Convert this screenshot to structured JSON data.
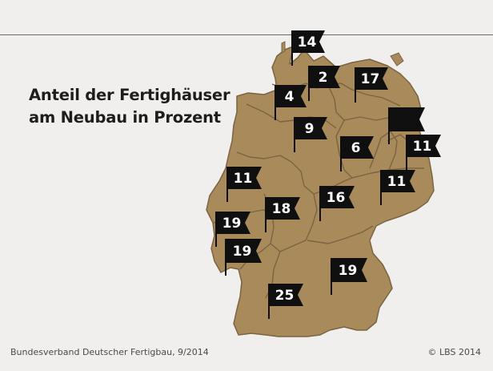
{
  "title": {
    "line1": "Anteil der Fertighäuser",
    "line2": "am Neubau in Prozent"
  },
  "colors": {
    "land": "#a88a5b",
    "border": "#7a6441",
    "flag": "#0f0f0f",
    "background": "#f1efee"
  },
  "regions": [
    {
      "label": "14"
    },
    {
      "label": "2"
    },
    {
      "label": "17"
    },
    {
      "label": "4"
    },
    {
      "label": ""
    },
    {
      "label": "9"
    },
    {
      "label": "6"
    },
    {
      "label": "11"
    },
    {
      "label": "11"
    },
    {
      "label": "11"
    },
    {
      "label": "16"
    },
    {
      "label": "18"
    },
    {
      "label": "19"
    },
    {
      "label": "19"
    },
    {
      "label": "19"
    },
    {
      "label": "25"
    }
  ],
  "footer": {
    "source": "Bundesverband Deutscher Fertigbau, 9/2014",
    "copyright": "© LBS 2014"
  }
}
